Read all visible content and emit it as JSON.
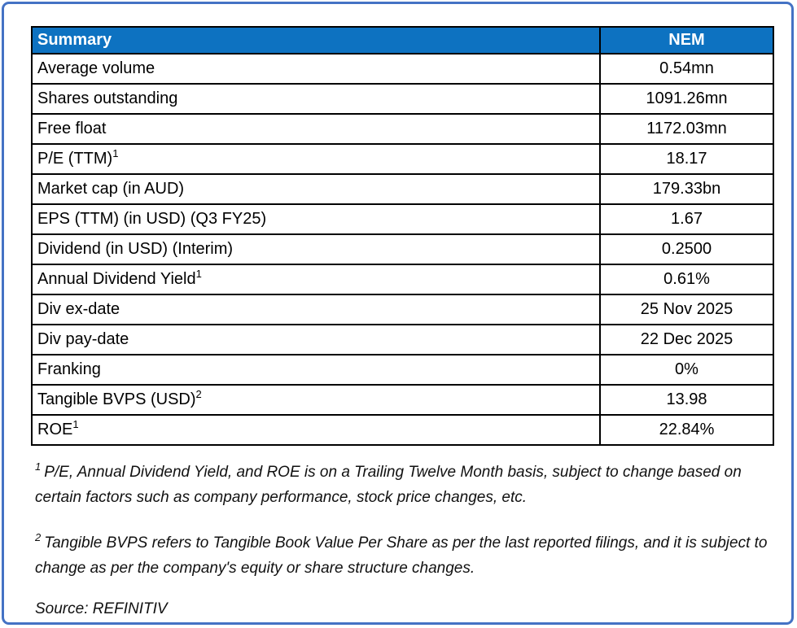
{
  "colors": {
    "header_bg": "#0D72C1",
    "header_text": "#ffffff",
    "frame_border": "#4472C4",
    "table_border": "#000000"
  },
  "table": {
    "header": {
      "label": "Summary",
      "ticker": "NEM"
    },
    "rows": [
      {
        "label": "Average volume",
        "sup": "",
        "value": "0.54mn"
      },
      {
        "label": "Shares outstanding",
        "sup": "",
        "value": "1091.26mn"
      },
      {
        "label": "Free float",
        "sup": "",
        "value": "1172.03mn"
      },
      {
        "label": "P/E (TTM)",
        "sup": "1",
        "value": "18.17"
      },
      {
        "label": "Market cap (in AUD)",
        "sup": "",
        "value": "179.33bn"
      },
      {
        "label": "EPS (TTM) (in USD) (Q3 FY25)",
        "sup": "",
        "value": "1.67"
      },
      {
        "label": "Dividend (in USD) (Interim)",
        "sup": "",
        "value": "0.2500"
      },
      {
        "label": "Annual Dividend Yield",
        "sup": "1",
        "value": "0.61%"
      },
      {
        "label": "Div ex-date",
        "sup": "",
        "value": "25 Nov 2025"
      },
      {
        "label": "Div pay-date",
        "sup": "",
        "value": "22 Dec 2025"
      },
      {
        "label": "Franking",
        "sup": "",
        "value": "0%"
      },
      {
        "label": "Tangible BVPS (USD)",
        "sup": "2",
        "value": "13.98"
      },
      {
        "label": "ROE",
        "sup": "1",
        "value": "22.84%"
      }
    ]
  },
  "footnotes": [
    {
      "sup": "1",
      "text": "P/E, Annual Dividend Yield, and ROE is on a Trailing Twelve Month basis, subject to change based on certain factors such as company performance, stock price changes, etc."
    },
    {
      "sup": "2",
      "text": "Tangible BVPS refers to Tangible Book Value Per Share as per the last reported filings, and it is subject to change as per the company's equity or share structure changes."
    }
  ],
  "source": "Source: REFINITIV"
}
